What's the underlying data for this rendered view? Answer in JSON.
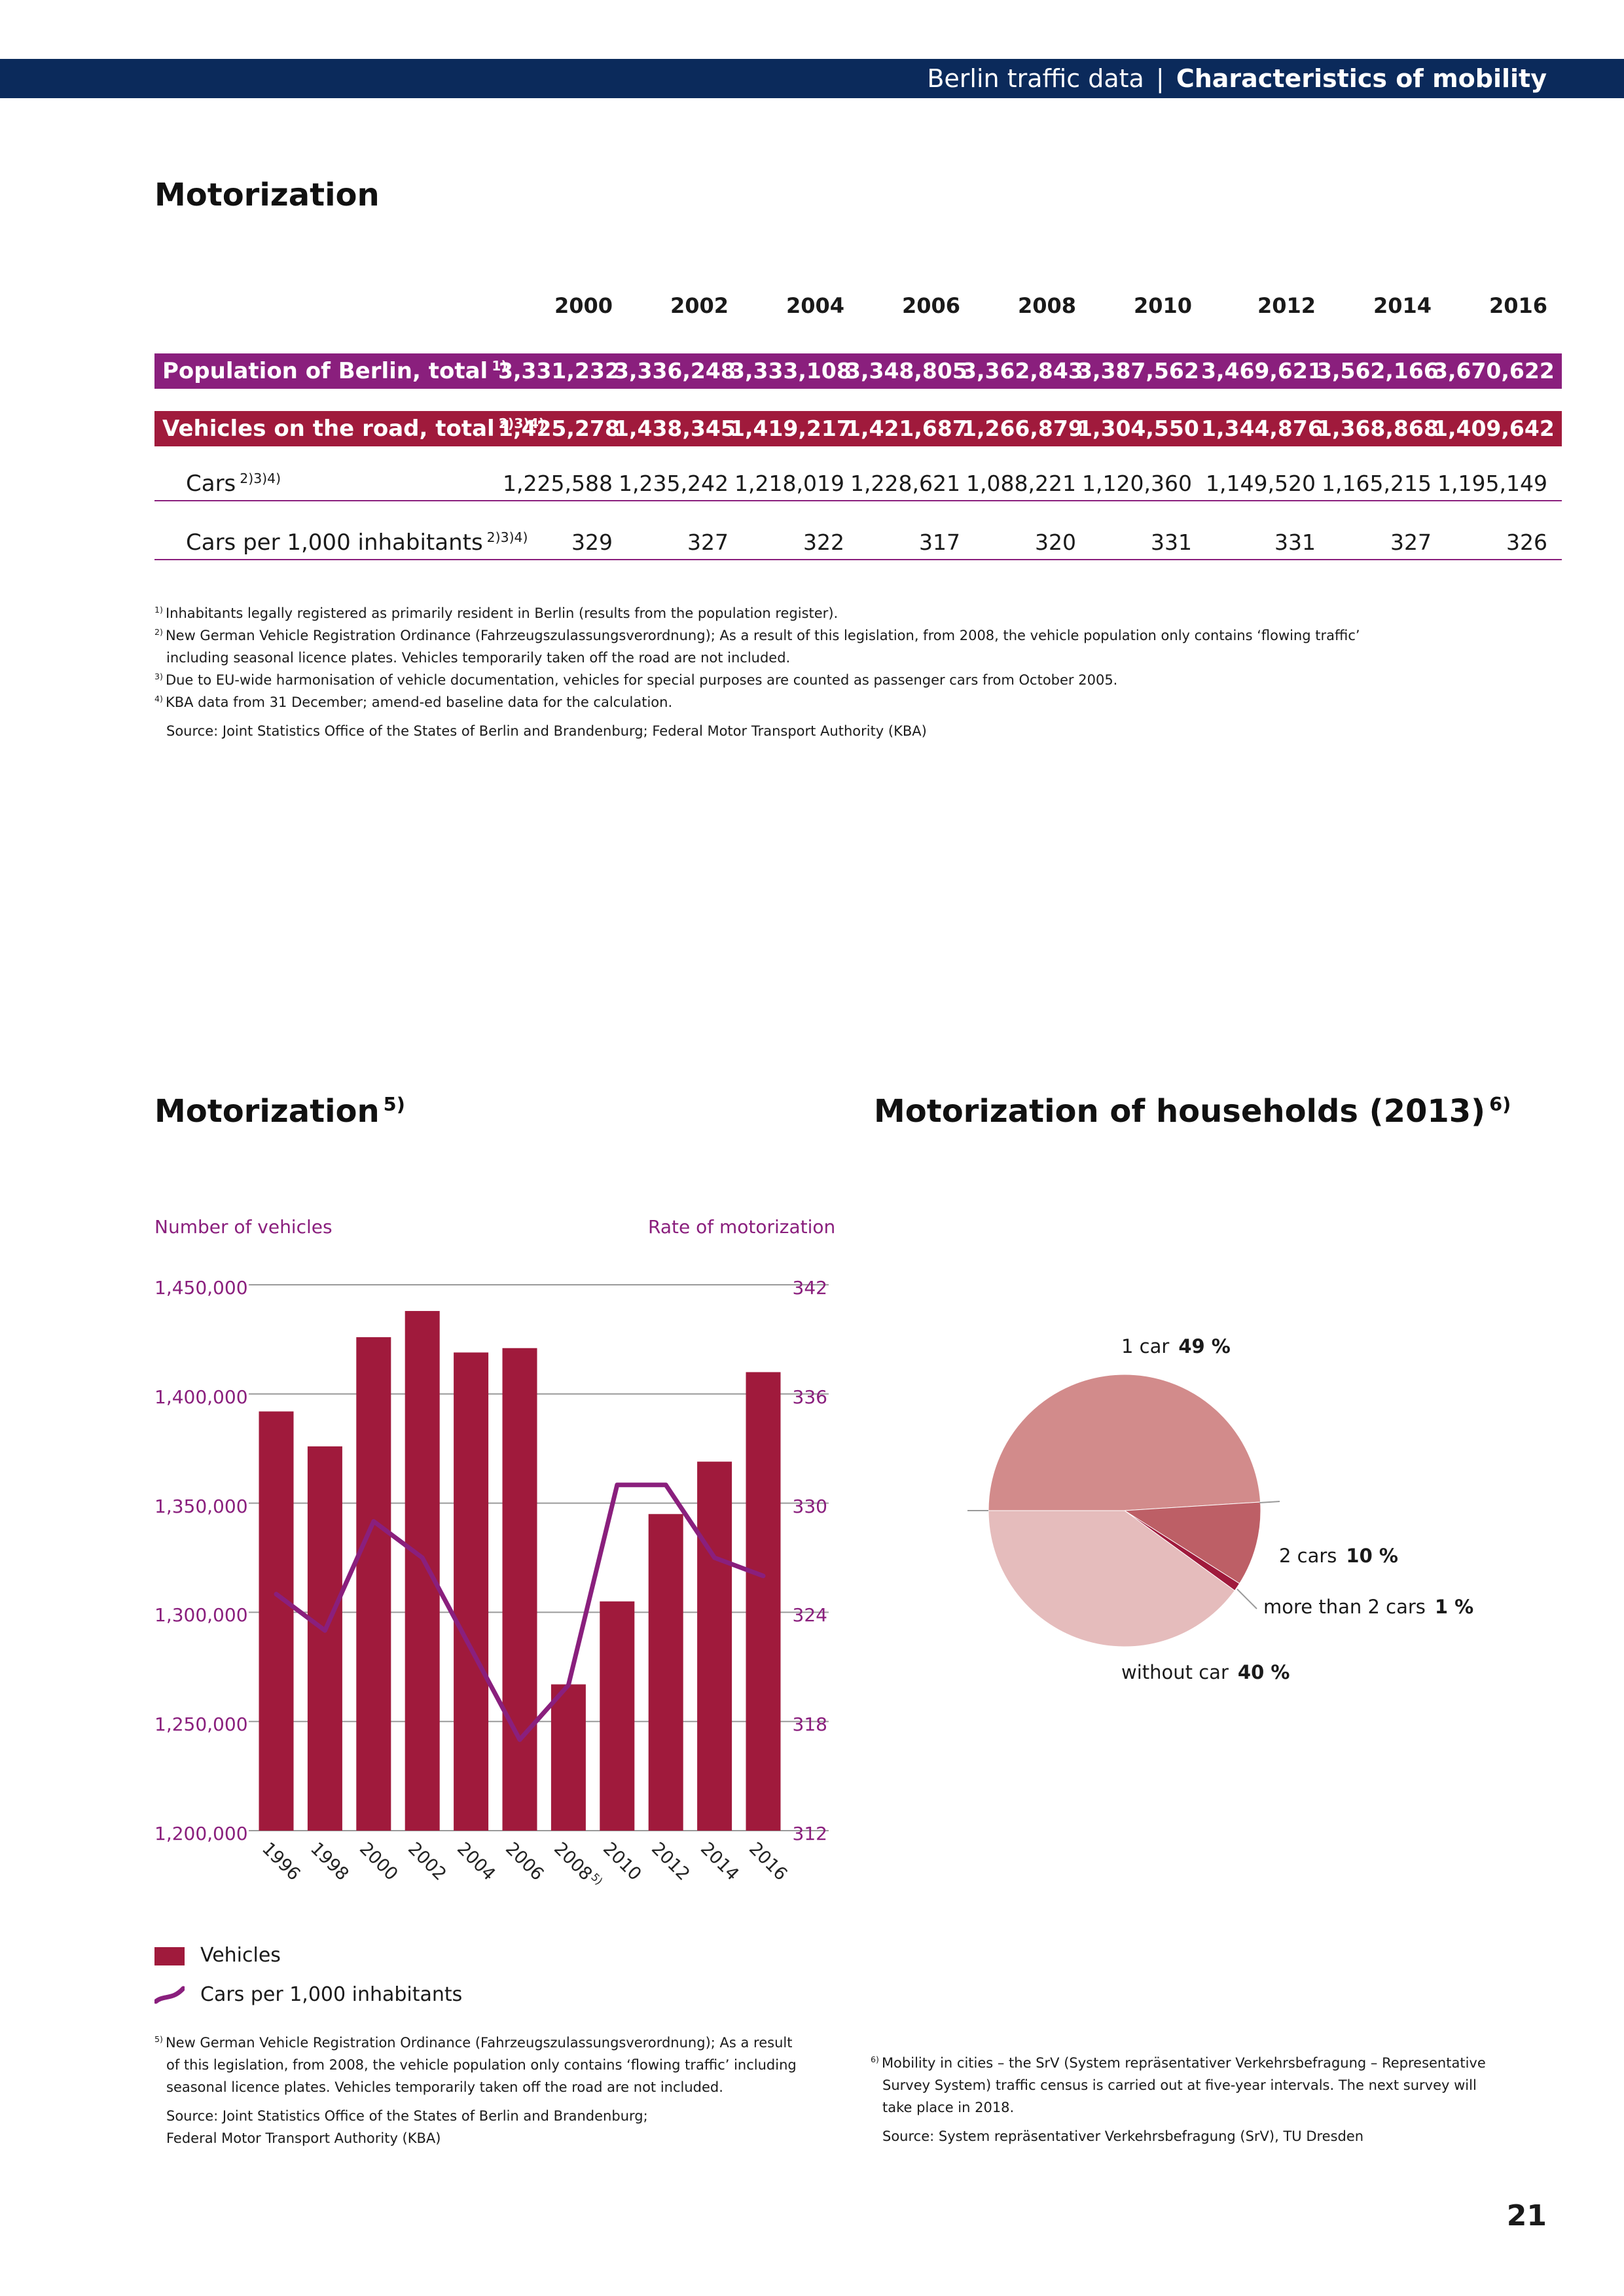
{
  "header": {
    "section": "Berlin traffic data",
    "separator": "|",
    "chapter": "Characteristics of mobility"
  },
  "table_section": {
    "title": "Motorization",
    "years": [
      "2000",
      "2002",
      "2004",
      "2006",
      "2008",
      "2010",
      "2012",
      "2014",
      "2016"
    ],
    "rows": [
      {
        "label": "Population of Berlin, total",
        "note": "1)",
        "values": [
          "3,331,232",
          "3,336,248",
          "3,333,108",
          "3,348,805",
          "3,362,843",
          "3,387,562",
          "3,469,621",
          "3,562,166",
          "3,670,622"
        ]
      },
      {
        "label": "Vehicles on the road, total",
        "note": "2)3)4)",
        "values": [
          "1,425,278",
          "1,438,345",
          "1,419,217",
          "1,421,687",
          "1,266,879",
          "1,304,550",
          "1,344,876",
          "1,368,868",
          "1,409,642"
        ]
      },
      {
        "label": "Cars",
        "note": "2)3)4)",
        "values": [
          "1,225,588",
          "1,235,242",
          "1,218,019",
          "1,228,621",
          "1,088,221",
          "1,120,360",
          "1,149,520",
          "1,165,215",
          "1,195,149"
        ]
      },
      {
        "label": "Cars per 1,000 inhabitants",
        "note": "2)3)4)",
        "values": [
          "329",
          "327",
          "322",
          "317",
          "320",
          "331",
          "331",
          "327",
          "326"
        ]
      }
    ],
    "footnotes": [
      {
        "mark": "1)",
        "text": "Inhabitants legally registered as primarily resident in Berlin (results from the population register)."
      },
      {
        "mark": "2)",
        "text": "New German Vehicle Registration Ordinance (Fahrzeugszulassungsverordnung); As a result of this legislation, from 2008, the vehicle population only contains ‘flowing traffic’"
      },
      {
        "mark": "",
        "text": "including seasonal licence plates. Vehicles temporarily taken off the road are not included."
      },
      {
        "mark": "3)",
        "text": "Due to EU-wide harmonisation of vehicle documentation, vehicles for special purposes are counted as passenger cars from October 2005."
      },
      {
        "mark": "4)",
        "text": "KBA data from 31 December; amend-ed baseline data for the calculation."
      }
    ],
    "source": "Source: Joint Statistics Office of the States of Berlin and Brandenburg; Federal Motor Transport Authority (KBA)"
  },
  "bar_section": {
    "title": "Motorization",
    "title_note": "5)",
    "left_axis_title": "Number of vehicles",
    "right_axis_title": "Rate of motorization",
    "legend": {
      "bars": "Vehicles",
      "line": "Cars per 1,000 inhabitants"
    },
    "footnote_mark": "5)",
    "footnote_lines": [
      "New German Vehicle Registration Ordinance (Fahrzeugszulassungsverordnung); As a result",
      "of this legislation, from 2008, the vehicle population only contains ‘flowing traffic’ including",
      "seasonal licence plates. Vehicles temporarily taken off the road are not included."
    ],
    "source_lines": [
      "Source: Joint Statistics Office of the States of Berlin and Brandenburg;",
      "Federal Motor Transport Authority (KBA)"
    ]
  },
  "pie_section": {
    "title": "Motorization of households (2013)",
    "title_note": "6)",
    "footnote_mark": "6)",
    "footnote_lines": [
      "Mobility in cities – the SrV (System repräsentativer Verkehrsbefragung – Representative",
      "Survey System) traffic census is carried out at five-year intervals. The next survey will",
      "take place in 2018."
    ],
    "source": "Source: System repräsentativer Verkehrsbefragung (SrV), TU Dresden"
  },
  "chart_data": [
    {
      "type": "bar",
      "title": "Motorization",
      "categories": [
        "1996",
        "1998",
        "2000",
        "2002",
        "2004",
        "2006",
        "2008",
        "2010",
        "2012",
        "2014",
        "2016"
      ],
      "category_notes": {
        "2008": "5)"
      },
      "series": [
        {
          "name": "Vehicles",
          "type": "bar",
          "axis": "left",
          "color": "#a01a3c",
          "values": [
            1392000,
            1376000,
            1426000,
            1438000,
            1419000,
            1421000,
            1267000,
            1305000,
            1345000,
            1369000,
            1410000
          ]
        },
        {
          "name": "Cars per 1,000 inhabitants",
          "type": "line",
          "axis": "right",
          "color": "#8a1f7d",
          "values": [
            325,
            323,
            329,
            327,
            322,
            317,
            320,
            331,
            331,
            327,
            326
          ]
        }
      ],
      "y_left": {
        "label": "Number of vehicles",
        "range": [
          1200000,
          1450000
        ],
        "ticks": [
          "1,200,000",
          "1,250,000",
          "1,300,000",
          "1,350,000",
          "1,400,000",
          "1,450,000"
        ]
      },
      "y_right": {
        "label": "Rate of motorization",
        "range": [
          312,
          342
        ],
        "ticks": [
          "312",
          "318",
          "324",
          "330",
          "336",
          "342"
        ]
      },
      "grid": true,
      "legend": "bottom-left"
    },
    {
      "type": "pie",
      "title": "Motorization of households (2013)",
      "slices": [
        {
          "label": "1 car",
          "value": 49,
          "display": "49 %",
          "color": "#d28b8b"
        },
        {
          "label": "2 cars",
          "value": 10,
          "display": "10 %",
          "color": "#bd5f66"
        },
        {
          "label": "more than 2 cars",
          "value": 1,
          "display": "1 %",
          "color": "#a01a3c"
        },
        {
          "label": "without car",
          "value": 40,
          "display": "40 %",
          "color": "#e5bcbc"
        }
      ]
    }
  ],
  "page_number": "21"
}
